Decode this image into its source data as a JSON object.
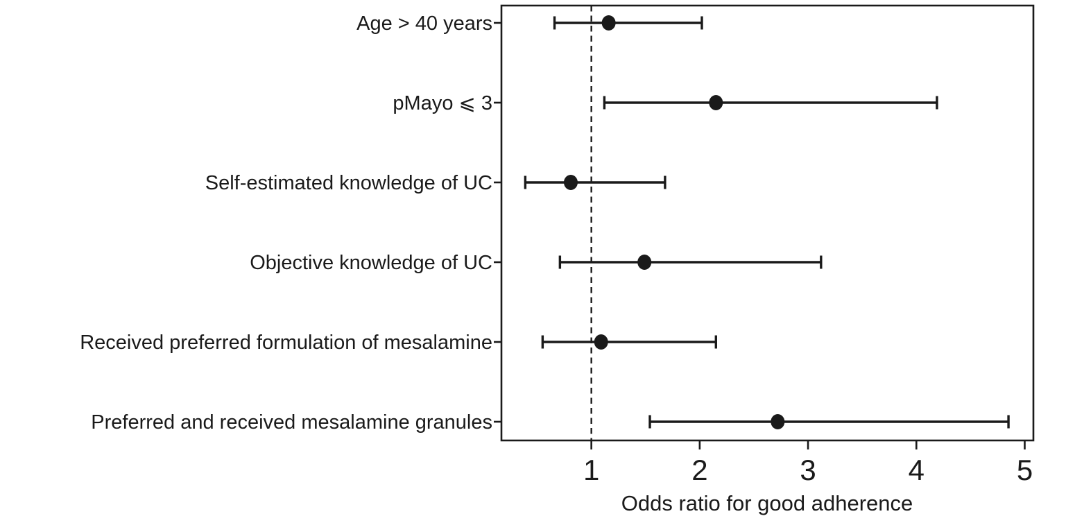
{
  "figure": {
    "background": "#ffffff",
    "ink_color": "#1a1a1a"
  },
  "chart_data": {
    "type": "scatter",
    "subtype": "forest-plot",
    "title": "",
    "xlabel": "Odds ratio for good adherence",
    "ylabel": "",
    "xlim": [
      0.17,
      5.08
    ],
    "xticks": [
      1,
      2,
      3,
      4,
      5
    ],
    "grid": false,
    "legend": false,
    "reference_line": {
      "x": 1,
      "style": "dashed"
    },
    "marker": "filled-black-circle",
    "rows": [
      {
        "label": "Age > 40 years",
        "odds_ratio": 1.16,
        "ci_lower": 0.66,
        "ci_upper": 2.02
      },
      {
        "label": "pMayo ⩽ 3",
        "odds_ratio": 2.15,
        "ci_lower": 1.12,
        "ci_upper": 4.19
      },
      {
        "label": "Self-estimated knowledge of UC",
        "odds_ratio": 0.81,
        "ci_lower": 0.39,
        "ci_upper": 1.68
      },
      {
        "label": "Objective knowledge of UC",
        "odds_ratio": 1.49,
        "ci_lower": 0.71,
        "ci_upper": 3.12
      },
      {
        "label": "Received preferred formulation of mesalamine",
        "odds_ratio": 1.09,
        "ci_lower": 0.55,
        "ci_upper": 2.15
      },
      {
        "label": "Preferred and received mesalamine granules",
        "odds_ratio": 2.72,
        "ci_lower": 1.54,
        "ci_upper": 4.85
      }
    ]
  }
}
